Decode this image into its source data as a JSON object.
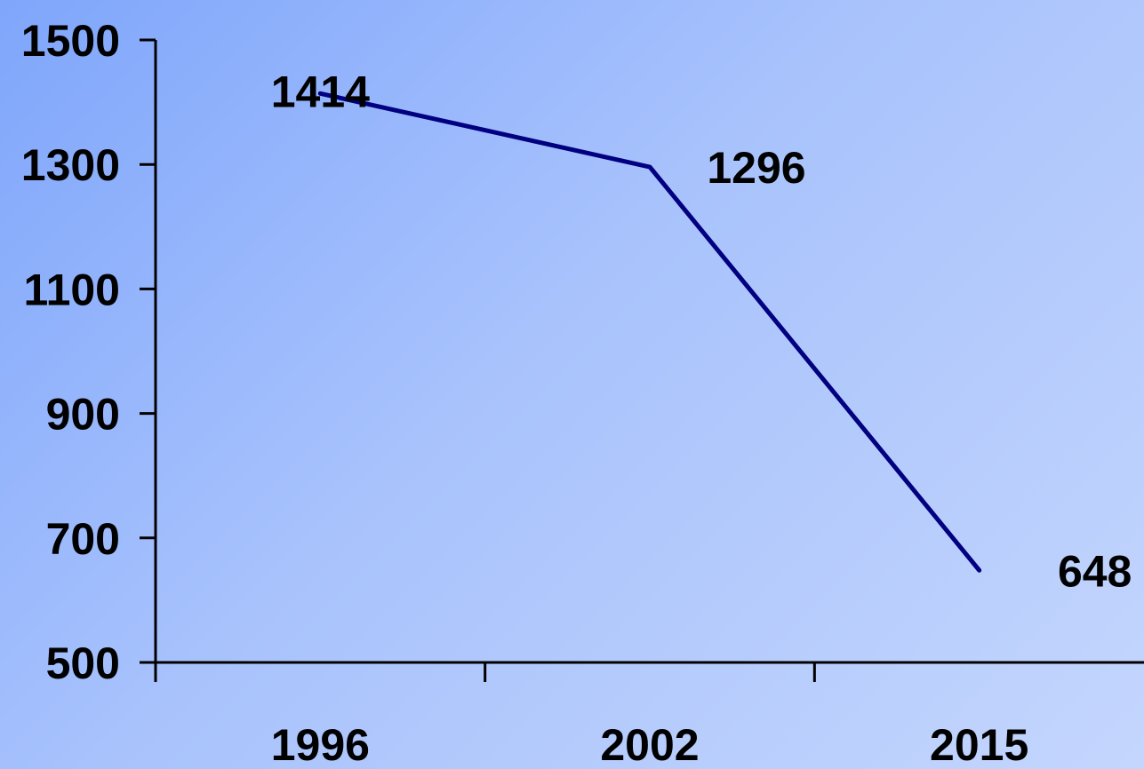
{
  "chart_data": {
    "type": "line",
    "title": "",
    "xlabel": "",
    "ylabel": "",
    "categories": [
      "1996",
      "2002",
      "2015"
    ],
    "series": [
      {
        "values": [
          1414,
          1296,
          648
        ],
        "data_labels": [
          "1414",
          "1296",
          "648"
        ]
      }
    ],
    "ylim": [
      500,
      1500
    ],
    "y_ticks": [
      "500",
      "700",
      "900",
      "1100",
      "1300",
      "1500"
    ],
    "grid": false,
    "legend": "none",
    "colors": {
      "line": "#000080",
      "axis": "#000000",
      "text": "#000000"
    }
  }
}
